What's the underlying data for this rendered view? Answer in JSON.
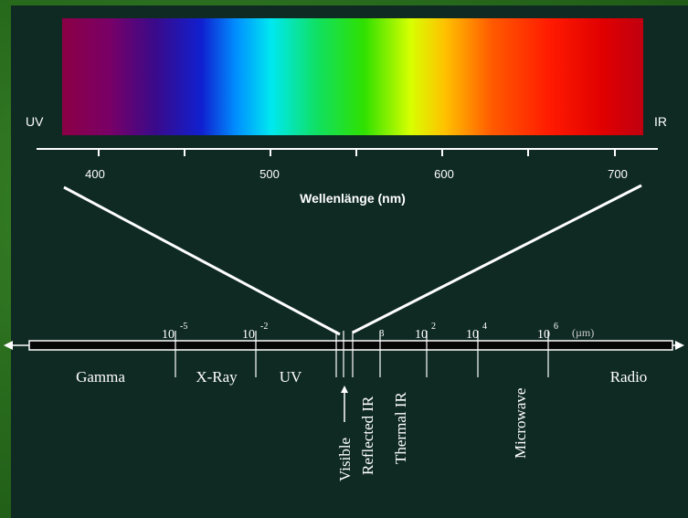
{
  "spectrum": {
    "left_label": "UV",
    "right_label": "IR",
    "ticks": [
      "400",
      "500",
      "600",
      "700"
    ],
    "axis_title": "Wellenlänge (nm)"
  },
  "em_scale": {
    "exponent_labels": [
      {
        "base": "10",
        "exp": "-5"
      },
      {
        "base": "10",
        "exp": "-2"
      },
      {
        "base": "",
        "exp": "3"
      },
      {
        "base": "10",
        "exp": "2"
      },
      {
        "base": "10",
        "exp": "4"
      },
      {
        "base": "10",
        "exp": "6"
      }
    ],
    "unit": "(µm)",
    "bands": [
      "Gamma",
      "X-Ray",
      "UV",
      "Microwave",
      "Radio"
    ],
    "vertical_bands": [
      "Visible",
      "Reflected IR",
      "Thermal IR",
      "Microwave"
    ]
  },
  "colors": {
    "background_panel": "#0f2a23",
    "frame_green": "#2a6e1e",
    "line_white": "#ffffff",
    "bar_black": "#050505"
  }
}
